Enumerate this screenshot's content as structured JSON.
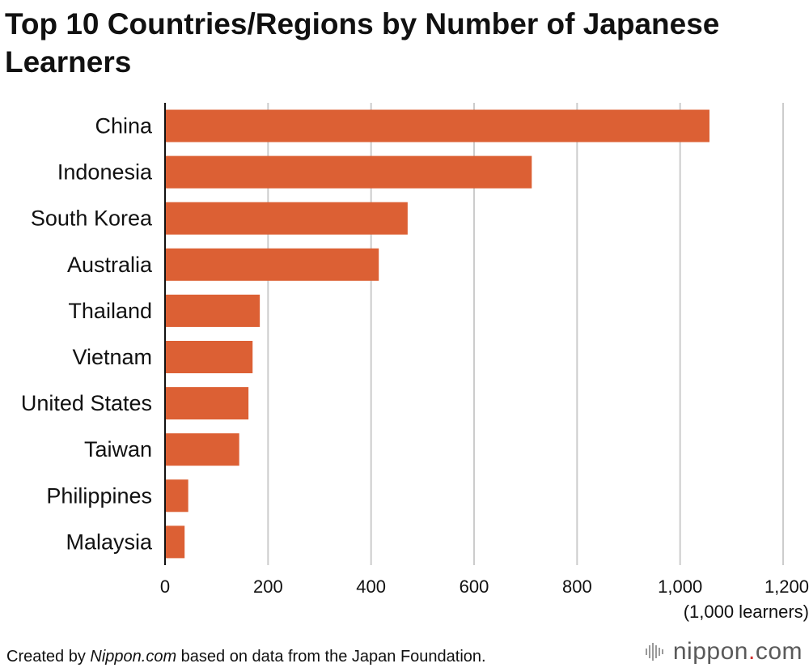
{
  "title": "Top 10 Countries/Regions by Number of Japanese Learners",
  "footer": {
    "prefix": "Created by ",
    "source": "Nippon.com",
    "suffix": " based on data from the Japan Foundation."
  },
  "logo": {
    "main": "nippon",
    "dot": ".",
    "tld": "com"
  },
  "colors": {
    "bar": "#dc6034",
    "grid": "#cccccc",
    "axis": "#111111"
  },
  "chart_data": {
    "type": "bar",
    "orientation": "horizontal",
    "categories": [
      "China",
      "Indonesia",
      "South Korea",
      "Australia",
      "Thailand",
      "Vietnam",
      "United States",
      "Taiwan",
      "Philippines",
      "Malaysia"
    ],
    "values": [
      1057,
      712,
      471,
      415,
      184,
      170,
      162,
      144,
      45,
      38
    ],
    "xlim": [
      0,
      1200
    ],
    "ticks": [
      0,
      200,
      400,
      600,
      800,
      1000,
      1200
    ],
    "tick_labels": [
      "0",
      "200",
      "400",
      "600",
      "800",
      "1,000",
      "1,200"
    ],
    "xlabel": "(1,000 learners)",
    "grid": true
  }
}
